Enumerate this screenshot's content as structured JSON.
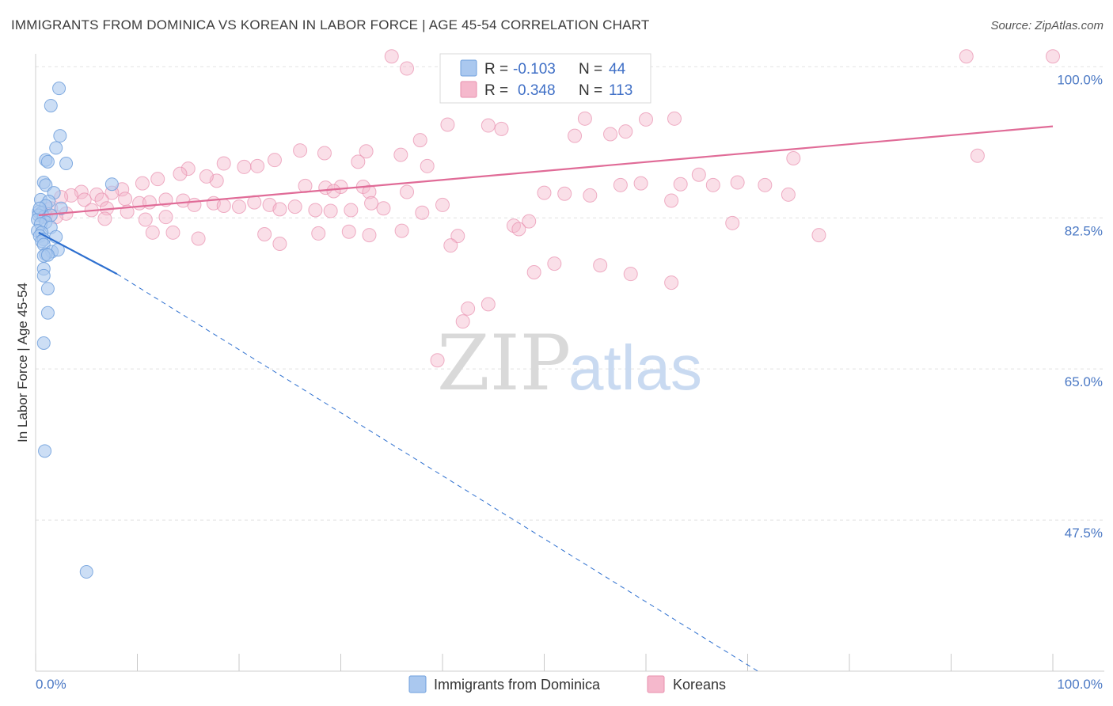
{
  "title": "IMMIGRANTS FROM DOMINICA VS KOREAN IN LABOR FORCE | AGE 45-54 CORRELATION CHART",
  "source": "Source: ZipAtlas.com",
  "watermark": {
    "zip": "ZIP",
    "atlas": "atlas"
  },
  "colors": {
    "blue_fill": "#aac8ef",
    "blue_stroke": "#6f9fdc",
    "blue_line": "#2d6fcf",
    "pink_fill": "#f5b8cc",
    "pink_stroke": "#e88fae",
    "pink_line": "#e06b97",
    "grid": "#e2e2e2",
    "tick_text": "#4a78c4"
  },
  "stats": {
    "r_label": "R =",
    "n_label": "N =",
    "rows": [
      {
        "series": "Immigrants from Dominica",
        "r": "-0.103",
        "n": "44"
      },
      {
        "series": "Koreans",
        "r": "0.348",
        "n": "113"
      }
    ]
  },
  "chart_data": {
    "type": "scatter",
    "title": "IMMIGRANTS FROM DOMINICA VS KOREAN IN LABOR FORCE | AGE 45-54 CORRELATION CHART",
    "xlabel": "",
    "ylabel": "In Labor Force | Age 45-54",
    "xlim": [
      0,
      105
    ],
    "ylim": [
      30,
      101.5
    ],
    "y_ticks": [
      {
        "value": 100,
        "label": "100.0%"
      },
      {
        "value": 82.5,
        "label": "82.5%"
      },
      {
        "value": 65,
        "label": "65.0%"
      },
      {
        "value": 47.5,
        "label": "47.5%"
      }
    ],
    "x_tick_labels": [
      {
        "value": 0,
        "label": "0.0%"
      },
      {
        "value": 100,
        "label": "100.0%"
      }
    ],
    "x_minor_ticks": [
      0,
      10,
      20,
      30,
      40,
      50,
      60,
      70,
      80,
      90,
      100
    ],
    "grid": true,
    "legend_position": "bottom",
    "series": [
      {
        "name": "Immigrants from Dominica",
        "color": "#aac8ef",
        "trend": {
          "x0": 0.3,
          "y0": 80.8,
          "x1": 8,
          "y1": 76.0,
          "dash_to_x": 71,
          "dash_to_y": 30
        },
        "points": [
          [
            2.3,
            97.5
          ],
          [
            1.5,
            95.5
          ],
          [
            2.4,
            92.0
          ],
          [
            2.0,
            90.6
          ],
          [
            1.0,
            89.2
          ],
          [
            1.2,
            89.0
          ],
          [
            3.0,
            88.8
          ],
          [
            0.8,
            86.6
          ],
          [
            1.0,
            86.3
          ],
          [
            7.5,
            86.4
          ],
          [
            1.8,
            85.4
          ],
          [
            0.5,
            84.6
          ],
          [
            1.3,
            84.4
          ],
          [
            1.0,
            83.9
          ],
          [
            2.5,
            83.6
          ],
          [
            0.3,
            83.2
          ],
          [
            0.6,
            83.1
          ],
          [
            0.3,
            82.8
          ],
          [
            0.8,
            82.6
          ],
          [
            1.5,
            82.8
          ],
          [
            0.2,
            82.3
          ],
          [
            1.0,
            82.0
          ],
          [
            0.5,
            81.8
          ],
          [
            1.5,
            81.4
          ],
          [
            0.2,
            81.0
          ],
          [
            0.6,
            80.8
          ],
          [
            0.4,
            80.4
          ],
          [
            0.8,
            80.0
          ],
          [
            2.0,
            80.3
          ],
          [
            0.6,
            79.8
          ],
          [
            0.8,
            79.4
          ],
          [
            1.6,
            78.6
          ],
          [
            2.2,
            78.8
          ],
          [
            1.0,
            78.3
          ],
          [
            0.8,
            78.1
          ],
          [
            1.2,
            78.2
          ],
          [
            0.8,
            76.6
          ],
          [
            0.8,
            75.8
          ],
          [
            1.2,
            74.3
          ],
          [
            1.2,
            71.5
          ],
          [
            0.8,
            68.0
          ],
          [
            0.9,
            55.5
          ],
          [
            5.0,
            41.5
          ],
          [
            0.4,
            83.6
          ]
        ]
      },
      {
        "name": "Koreans",
        "color": "#f5b8cc",
        "trend": {
          "x0": 0.3,
          "y0": 82.8,
          "x1": 100,
          "y1": 93.1
        },
        "points": [
          [
            35.0,
            101.2
          ],
          [
            36.5,
            99.8
          ],
          [
            91.5,
            101.2
          ],
          [
            100,
            101.2
          ],
          [
            40.5,
            93.3
          ],
          [
            44.5,
            93.2
          ],
          [
            45.8,
            92.8
          ],
          [
            54.0,
            94.0
          ],
          [
            60.0,
            93.9
          ],
          [
            62.8,
            94.0
          ],
          [
            56.5,
            92.2
          ],
          [
            58.0,
            92.5
          ],
          [
            53.0,
            92.0
          ],
          [
            37.8,
            91.5
          ],
          [
            32.5,
            90.2
          ],
          [
            35.9,
            89.8
          ],
          [
            38.5,
            88.5
          ],
          [
            31.7,
            89.0
          ],
          [
            28.4,
            90.0
          ],
          [
            26.0,
            90.3
          ],
          [
            23.5,
            89.2
          ],
          [
            21.8,
            88.5
          ],
          [
            20.5,
            88.4
          ],
          [
            18.5,
            88.8
          ],
          [
            15.0,
            88.2
          ],
          [
            14.2,
            87.6
          ],
          [
            17.8,
            86.8
          ],
          [
            16.8,
            87.3
          ],
          [
            26.5,
            86.2
          ],
          [
            28.5,
            86.0
          ],
          [
            30.0,
            86.1
          ],
          [
            29.3,
            85.6
          ],
          [
            32.2,
            86.1
          ],
          [
            32.8,
            85.5
          ],
          [
            36.5,
            85.5
          ],
          [
            50.0,
            85.4
          ],
          [
            52.0,
            85.3
          ],
          [
            54.5,
            85.1
          ],
          [
            57.5,
            86.3
          ],
          [
            59.5,
            86.5
          ],
          [
            63.4,
            86.4
          ],
          [
            66.6,
            86.3
          ],
          [
            65.2,
            87.5
          ],
          [
            69.0,
            86.6
          ],
          [
            71.7,
            86.3
          ],
          [
            74.0,
            85.2
          ],
          [
            74.5,
            89.4
          ],
          [
            92.6,
            89.7
          ],
          [
            12.0,
            87.0
          ],
          [
            10.5,
            86.5
          ],
          [
            8.5,
            85.8
          ],
          [
            7.5,
            85.4
          ],
          [
            6.0,
            85.2
          ],
          [
            4.5,
            85.5
          ],
          [
            3.5,
            85.1
          ],
          [
            2.5,
            84.9
          ],
          [
            4.8,
            84.6
          ],
          [
            6.5,
            84.6
          ],
          [
            8.8,
            84.7
          ],
          [
            10.2,
            84.2
          ],
          [
            11.2,
            84.3
          ],
          [
            12.8,
            84.6
          ],
          [
            14.5,
            84.5
          ],
          [
            15.6,
            84.0
          ],
          [
            17.5,
            84.2
          ],
          [
            18.5,
            83.9
          ],
          [
            20.0,
            83.8
          ],
          [
            21.5,
            84.3
          ],
          [
            23.0,
            84.0
          ],
          [
            24.0,
            83.5
          ],
          [
            25.5,
            83.8
          ],
          [
            27.5,
            83.4
          ],
          [
            29.0,
            83.3
          ],
          [
            31.0,
            83.4
          ],
          [
            33.0,
            84.2
          ],
          [
            34.2,
            83.6
          ],
          [
            38.0,
            83.1
          ],
          [
            40.0,
            84.0
          ],
          [
            9.0,
            83.2
          ],
          [
            7.0,
            83.6
          ],
          [
            5.5,
            83.4
          ],
          [
            3.0,
            83.0
          ],
          [
            1.5,
            83.6
          ],
          [
            1.0,
            82.8
          ],
          [
            2.0,
            82.6
          ],
          [
            6.8,
            82.4
          ],
          [
            10.8,
            82.3
          ],
          [
            12.8,
            82.6
          ],
          [
            48.5,
            82.1
          ],
          [
            62.5,
            84.5
          ],
          [
            68.5,
            81.9
          ],
          [
            13.5,
            80.8
          ],
          [
            16.0,
            80.1
          ],
          [
            22.5,
            80.6
          ],
          [
            27.8,
            80.7
          ],
          [
            30.8,
            80.9
          ],
          [
            32.8,
            80.5
          ],
          [
            36.0,
            81.0
          ],
          [
            41.5,
            80.4
          ],
          [
            47.0,
            81.6
          ],
          [
            47.5,
            81.2
          ],
          [
            11.5,
            80.8
          ],
          [
            24.0,
            79.5
          ],
          [
            40.8,
            79.3
          ],
          [
            77.0,
            80.5
          ],
          [
            49.0,
            76.2
          ],
          [
            51.0,
            77.2
          ],
          [
            55.5,
            77.0
          ],
          [
            62.5,
            75.0
          ],
          [
            58.5,
            76.0
          ],
          [
            42.5,
            72.0
          ],
          [
            42.0,
            70.5
          ],
          [
            44.5,
            72.5
          ],
          [
            39.5,
            66.0
          ]
        ]
      }
    ]
  }
}
